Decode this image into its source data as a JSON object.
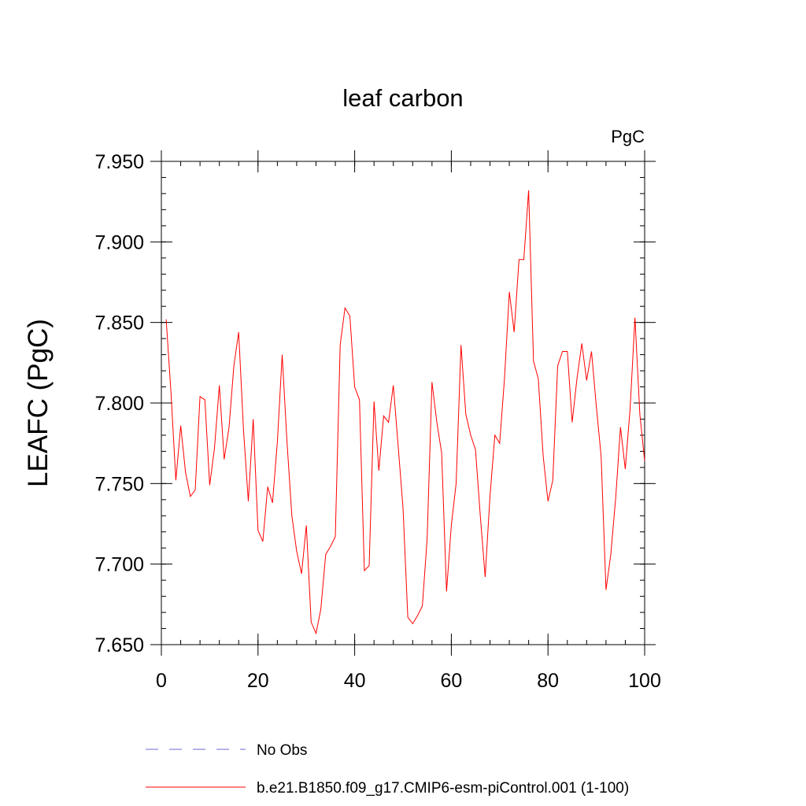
{
  "chart_data": {
    "type": "line",
    "title": "leaf carbon",
    "units_label": "PgC",
    "ylabel": "LEAFC  (PgC)",
    "xlabel": "",
    "xlim": [
      0,
      100
    ],
    "ylim": [
      7.65,
      7.95
    ],
    "x_ticks": [
      0,
      20,
      40,
      60,
      80,
      100
    ],
    "x_tick_labels": [
      "0",
      "20",
      "40",
      "60",
      "80",
      "100"
    ],
    "y_ticks": [
      7.65,
      7.7,
      7.75,
      7.8,
      7.85,
      7.9,
      7.95
    ],
    "y_tick_labels": [
      "7.650",
      "7.700",
      "7.750",
      "7.800",
      "7.850",
      "7.900",
      "7.950"
    ],
    "grid": false,
    "legend_position": "bottom",
    "legend": [
      {
        "label": "No Obs",
        "color": "#6a6ad8",
        "style": "dashed"
      },
      {
        "label": "b.e21.B1850.f09_g17.CMIP6-esm-piControl.001 (1-100)",
        "color": "#ff0000",
        "style": "solid"
      }
    ],
    "series": [
      {
        "name": "b.e21.B1850.f09_g17.CMIP6-esm-piControl.001 (1-100)",
        "color": "#ff0000",
        "x": [
          1,
          2,
          3,
          4,
          5,
          6,
          7,
          8,
          9,
          10,
          11,
          12,
          13,
          14,
          15,
          16,
          17,
          18,
          19,
          20,
          21,
          22,
          23,
          24,
          25,
          26,
          27,
          28,
          29,
          30,
          31,
          32,
          33,
          34,
          35,
          36,
          37,
          38,
          39,
          40,
          41,
          42,
          43,
          44,
          45,
          46,
          47,
          48,
          49,
          50,
          51,
          52,
          53,
          54,
          55,
          56,
          57,
          58,
          59,
          60,
          61,
          62,
          63,
          64,
          65,
          66,
          67,
          68,
          69,
          70,
          71,
          72,
          73,
          74,
          75,
          76,
          77,
          78,
          79,
          80,
          81,
          82,
          83,
          84,
          85,
          86,
          87,
          88,
          89,
          90,
          91,
          92,
          93,
          94,
          95,
          96,
          97,
          98,
          99,
          100
        ],
        "y": [
          7.852,
          7.806,
          7.752,
          7.786,
          7.757,
          7.742,
          7.746,
          7.804,
          7.802,
          7.749,
          7.772,
          7.811,
          7.765,
          7.785,
          7.823,
          7.844,
          7.783,
          7.739,
          7.79,
          7.721,
          7.714,
          7.748,
          7.738,
          7.776,
          7.83,
          7.776,
          7.73,
          7.708,
          7.694,
          7.724,
          7.664,
          7.657,
          7.672,
          7.706,
          7.711,
          7.717,
          7.836,
          7.859,
          7.854,
          7.81,
          7.802,
          7.696,
          7.699,
          7.801,
          7.758,
          7.792,
          7.788,
          7.811,
          7.773,
          7.735,
          7.667,
          7.663,
          7.668,
          7.674,
          7.716,
          7.813,
          7.788,
          7.769,
          7.683,
          7.724,
          7.75,
          7.836,
          7.793,
          7.78,
          7.771,
          7.73,
          7.692,
          7.742,
          7.78,
          7.775,
          7.815,
          7.869,
          7.844,
          7.889,
          7.889,
          7.932,
          7.826,
          7.815,
          7.767,
          7.739,
          7.752,
          7.823,
          7.832,
          7.832,
          7.788,
          7.815,
          7.837,
          7.814,
          7.832,
          7.798,
          7.767,
          7.684,
          7.706,
          7.741,
          7.785,
          7.759,
          7.797,
          7.853,
          7.793,
          7.764
        ]
      }
    ]
  }
}
